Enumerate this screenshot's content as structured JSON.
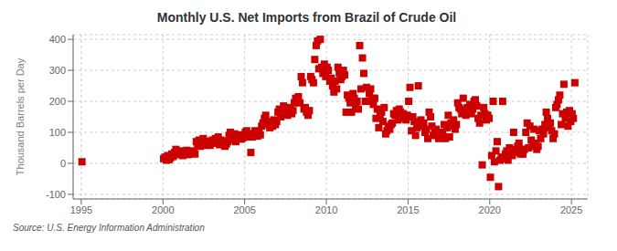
{
  "chart_data": {
    "type": "scatter",
    "title": "Monthly U.S. Net Imports from Brazil of Crude Oil",
    "ylabel": "Thousand Barrels per Day",
    "annotations": [
      "Source: U.S. Energy Information Administration"
    ],
    "color": "#cc0000",
    "marker": "square",
    "grid": true,
    "xlim": [
      1994.5,
      2026.0
    ],
    "ylim": [
      -115,
      415
    ],
    "xticks": [
      1995,
      2000,
      2005,
      2010,
      2015,
      2020,
      2025
    ],
    "yticks": [
      -100,
      0,
      100,
      200,
      300,
      400
    ],
    "x": [
      1995.04,
      2000.04,
      2000.12,
      2000.21,
      2000.29,
      2000.38,
      2000.46,
      2000.54,
      2000.63,
      2000.71,
      2000.79,
      2000.88,
      2001.04,
      2001.12,
      2001.21,
      2001.29,
      2001.38,
      2001.46,
      2001.54,
      2001.63,
      2001.71,
      2001.79,
      2001.88,
      2001.96,
      2002.04,
      2002.12,
      2002.21,
      2002.29,
      2002.38,
      2002.46,
      2002.54,
      2002.63,
      2002.71,
      2002.79,
      2002.88,
      2002.96,
      2003.04,
      2003.12,
      2003.21,
      2003.29,
      2003.38,
      2003.46,
      2003.54,
      2003.63,
      2003.71,
      2003.79,
      2003.88,
      2003.96,
      2004.04,
      2004.12,
      2004.21,
      2004.29,
      2004.38,
      2004.46,
      2004.54,
      2004.63,
      2004.71,
      2004.79,
      2004.88,
      2004.96,
      2005.04,
      2005.12,
      2005.21,
      2005.29,
      2005.38,
      2005.46,
      2005.54,
      2005.63,
      2005.71,
      2005.79,
      2005.88,
      2005.96,
      2006.04,
      2006.12,
      2006.21,
      2006.29,
      2006.38,
      2006.46,
      2006.54,
      2006.63,
      2006.71,
      2006.79,
      2006.88,
      2006.96,
      2007.04,
      2007.12,
      2007.21,
      2007.29,
      2007.38,
      2007.46,
      2007.54,
      2007.63,
      2007.71,
      2007.79,
      2007.88,
      2007.96,
      2008.04,
      2008.12,
      2008.21,
      2008.29,
      2008.38,
      2008.46,
      2008.54,
      2008.63,
      2008.71,
      2008.79,
      2008.88,
      2008.96,
      2009.04,
      2009.12,
      2009.21,
      2009.29,
      2009.38,
      2009.46,
      2009.54,
      2009.63,
      2009.71,
      2009.79,
      2009.88,
      2009.96,
      2010.04,
      2010.12,
      2010.21,
      2010.29,
      2010.38,
      2010.46,
      2010.54,
      2010.63,
      2010.71,
      2010.79,
      2010.88,
      2010.96,
      2011.04,
      2011.12,
      2011.21,
      2011.29,
      2011.38,
      2011.46,
      2011.54,
      2011.63,
      2011.71,
      2011.79,
      2011.88,
      2011.96,
      2012.04,
      2012.12,
      2012.21,
      2012.29,
      2012.38,
      2012.46,
      2012.54,
      2012.63,
      2012.71,
      2012.79,
      2012.88,
      2012.96,
      2013.04,
      2013.12,
      2013.21,
      2013.29,
      2013.38,
      2013.46,
      2013.54,
      2013.63,
      2013.71,
      2013.79,
      2013.88,
      2013.96,
      2014.04,
      2014.12,
      2014.21,
      2014.29,
      2014.38,
      2014.46,
      2014.54,
      2014.63,
      2014.71,
      2014.79,
      2014.88,
      2014.96,
      2015.04,
      2015.12,
      2015.21,
      2015.29,
      2015.38,
      2015.46,
      2015.54,
      2015.63,
      2015.71,
      2015.79,
      2015.88,
      2015.96,
      2016.04,
      2016.12,
      2016.21,
      2016.29,
      2016.38,
      2016.46,
      2016.54,
      2016.63,
      2016.71,
      2016.79,
      2016.88,
      2016.96,
      2017.04,
      2017.12,
      2017.21,
      2017.29,
      2017.38,
      2017.46,
      2017.54,
      2017.63,
      2017.71,
      2017.79,
      2017.88,
      2017.96,
      2018.04,
      2018.12,
      2018.21,
      2018.29,
      2018.38,
      2018.46,
      2018.54,
      2018.63,
      2018.71,
      2018.79,
      2018.88,
      2018.96,
      2019.04,
      2019.12,
      2019.21,
      2019.29,
      2019.38,
      2019.46,
      2019.54,
      2019.63,
      2019.71,
      2019.79,
      2019.88,
      2019.96,
      2020.04,
      2020.12,
      2020.21,
      2020.29,
      2020.38,
      2020.46,
      2020.54,
      2020.63,
      2020.71,
      2020.79,
      2020.88,
      2020.96,
      2021.04,
      2021.12,
      2021.21,
      2021.29,
      2021.38,
      2021.46,
      2021.54,
      2021.63,
      2021.71,
      2021.79,
      2021.88,
      2021.96,
      2022.04,
      2022.12,
      2022.21,
      2022.29,
      2022.38,
      2022.46,
      2022.54,
      2022.63,
      2022.71,
      2022.79,
      2022.88,
      2022.96,
      2023.04,
      2023.12,
      2023.21,
      2023.29,
      2023.38,
      2023.46,
      2023.54,
      2023.63,
      2023.71,
      2023.79,
      2023.88,
      2023.96,
      2024.04,
      2024.12,
      2024.21,
      2024.29,
      2024.38,
      2024.46,
      2024.54,
      2024.63,
      2024.71,
      2024.79,
      2024.88,
      2024.96,
      2025.04,
      2025.12,
      2025.21
    ],
    "values": [
      5,
      15,
      20,
      10,
      25,
      12,
      18,
      30,
      22,
      35,
      45,
      28,
      35,
      40,
      25,
      30,
      38,
      42,
      28,
      35,
      40,
      32,
      38,
      30,
      70,
      60,
      75,
      55,
      65,
      80,
      58,
      68,
      62,
      72,
      58,
      65,
      75,
      65,
      80,
      70,
      85,
      60,
      75,
      68,
      72,
      55,
      62,
      70,
      90,
      100,
      75,
      85,
      95,
      70,
      80,
      88,
      92,
      78,
      82,
      88,
      100,
      105,
      85,
      95,
      35,
      85,
      95,
      105,
      98,
      88,
      100,
      92,
      120,
      130,
      145,
      155,
      135,
      125,
      115,
      130,
      120,
      140,
      125,
      135,
      165,
      175,
      150,
      165,
      185,
      160,
      175,
      155,
      170,
      180,
      160,
      170,
      195,
      210,
      200,
      215,
      195,
      280,
      260,
      175,
      180,
      165,
      155,
      170,
      280,
      270,
      260,
      335,
      380,
      395,
      305,
      400,
      310,
      290,
      320,
      280,
      310,
      300,
      265,
      275,
      250,
      230,
      265,
      240,
      310,
      290,
      270,
      280,
      300,
      285,
      165,
      220,
      210,
      195,
      165,
      225,
      210,
      185,
      200,
      175,
      380,
      240,
      340,
      290,
      200,
      245,
      200,
      225,
      240,
      210,
      190,
      210,
      145,
      175,
      115,
      155,
      165,
      135,
      180,
      95,
      105,
      120,
      110,
      125,
      130,
      160,
      155,
      170,
      140,
      175,
      165,
      145,
      160,
      150,
      140,
      155,
      200,
      245,
      105,
      150,
      135,
      90,
      115,
      250,
      130,
      140,
      120,
      130,
      100,
      110,
      80,
      165,
      150,
      120,
      90,
      100,
      110,
      90,
      80,
      95,
      100,
      95,
      125,
      80,
      115,
      155,
      85,
      130,
      120,
      140,
      110,
      125,
      195,
      180,
      175,
      160,
      210,
      165,
      155,
      180,
      170,
      190,
      160,
      175,
      200,
      205,
      185,
      145,
      130,
      155,
      -5,
      180,
      160,
      140,
      155,
      145,
      -45,
      25,
      200,
      5,
      40,
      70,
      -75,
      10,
      20,
      200,
      15,
      30,
      40,
      10,
      50,
      40,
      25,
      100,
      35,
      45,
      55,
      65,
      30,
      45,
      30,
      45,
      100,
      130,
      50,
      120,
      75,
      55,
      110,
      65,
      45,
      55,
      105,
      80,
      110,
      95,
      125,
      165,
      145,
      115,
      130,
      105,
      80,
      95,
      180,
      190,
      205,
      220,
      125,
      160,
      255,
      145,
      165,
      120,
      170,
      135,
      160,
      145,
      260
    ]
  }
}
